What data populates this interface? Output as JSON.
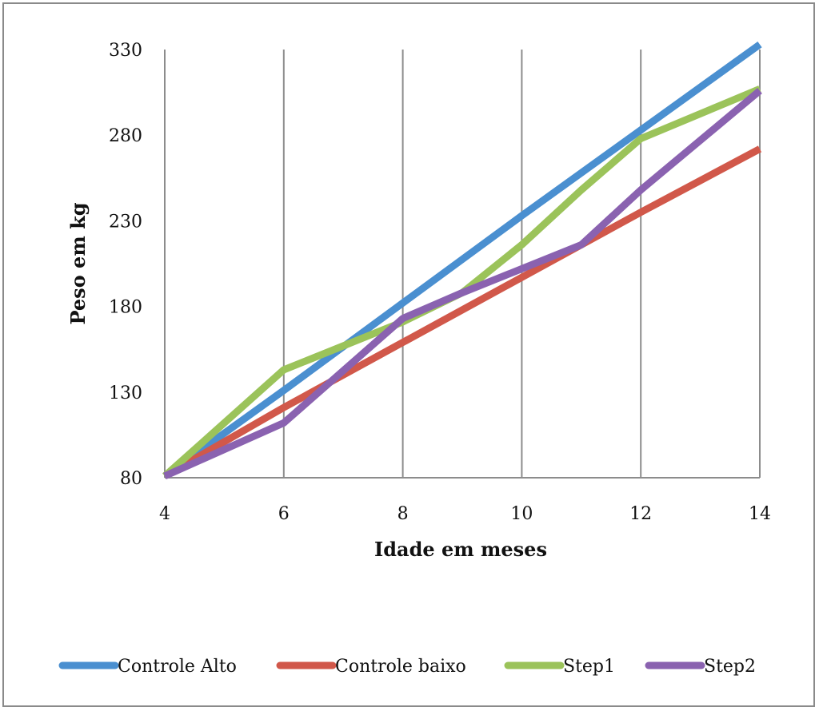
{
  "chart_data": {
    "type": "line",
    "title": "",
    "xlabel": "Idade em meses",
    "ylabel": "Peso em kg",
    "x": [
      4,
      6,
      8,
      10,
      12,
      14
    ],
    "xlim": [
      4,
      14
    ],
    "ylim": [
      80,
      330
    ],
    "xticks": [
      "4",
      "6",
      "8",
      "10",
      "12",
      "14"
    ],
    "yticks": [
      "80",
      "130",
      "180",
      "230",
      "280",
      "330"
    ],
    "grid": "vertical gridlines",
    "legend_position": "bottom",
    "series": [
      {
        "name": "Controle Alto",
        "color": "#4a8fd0",
        "x": [
          4,
          6,
          8,
          10,
          12,
          14
        ],
        "values": [
          81,
          131,
          182,
          233,
          283,
          333
        ]
      },
      {
        "name": "Controle baixo",
        "color": "#d1584a",
        "x": [
          4,
          6,
          8,
          10,
          12,
          14
        ],
        "values": [
          81,
          121,
          159,
          197,
          235,
          272
        ]
      },
      {
        "name": "Step1",
        "color": "#9bc35a",
        "x": [
          4,
          6,
          7,
          8,
          9,
          10,
          11,
          12,
          14
        ],
        "values": [
          81,
          143,
          157,
          171,
          188,
          216,
          248,
          278,
          307
        ]
      },
      {
        "name": "Step2",
        "color": "#8a62b0",
        "x": [
          4,
          6,
          8,
          9,
          10,
          11,
          12,
          14
        ],
        "values": [
          81,
          112,
          173,
          188,
          202,
          216,
          248,
          306
        ]
      }
    ]
  }
}
